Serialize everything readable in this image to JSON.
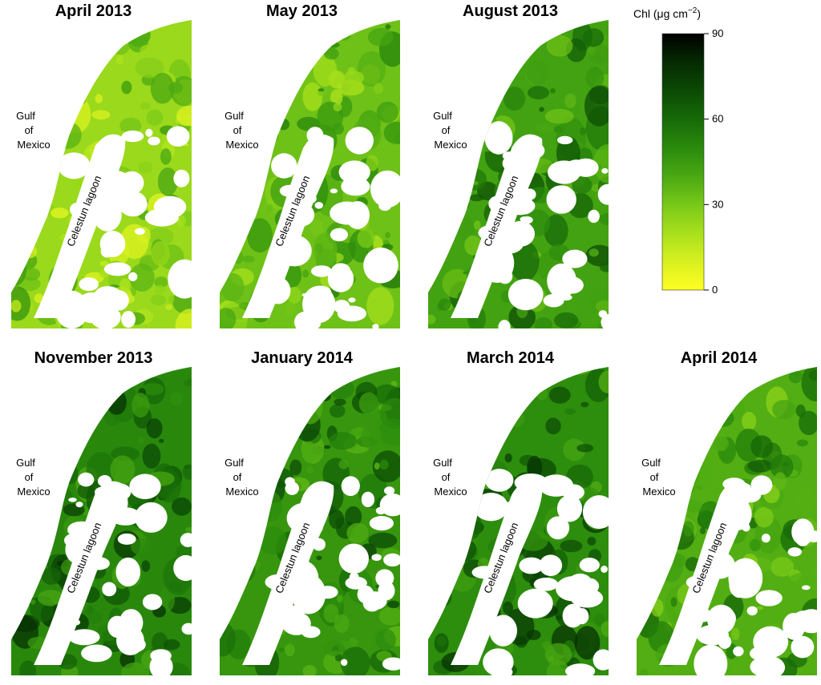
{
  "map_panels": [
    {
      "title": "April 2013",
      "intensity": 0.3
    },
    {
      "title": "May 2013",
      "intensity": 0.42
    },
    {
      "title": "August 2013",
      "intensity": 0.55
    },
    {
      "title": "November 2013",
      "intensity": 0.66
    },
    {
      "title": "January 2014",
      "intensity": 0.6
    },
    {
      "title": "March 2014",
      "intensity": 0.64
    },
    {
      "title": "April 2014",
      "intensity": 0.5
    }
  ],
  "labels": {
    "gulf_line1": "Gulf",
    "gulf_line2": "of",
    "gulf_line3": "Mexico",
    "lagoon": "Celestun lagoon"
  },
  "colorbar": {
    "title_prefix": "Chl (μg cm",
    "title_exponent": "−2",
    "title_suffix": ")",
    "ticks": [
      "90",
      "60",
      "30",
      "0"
    ],
    "min": 0,
    "max": 90,
    "colors": [
      "#ffff22",
      "#d8f020",
      "#a8e01c",
      "#78c818",
      "#4aa812",
      "#2a8a0c",
      "#176a08",
      "#0b4a05",
      "#052a02",
      "#000000"
    ]
  }
}
